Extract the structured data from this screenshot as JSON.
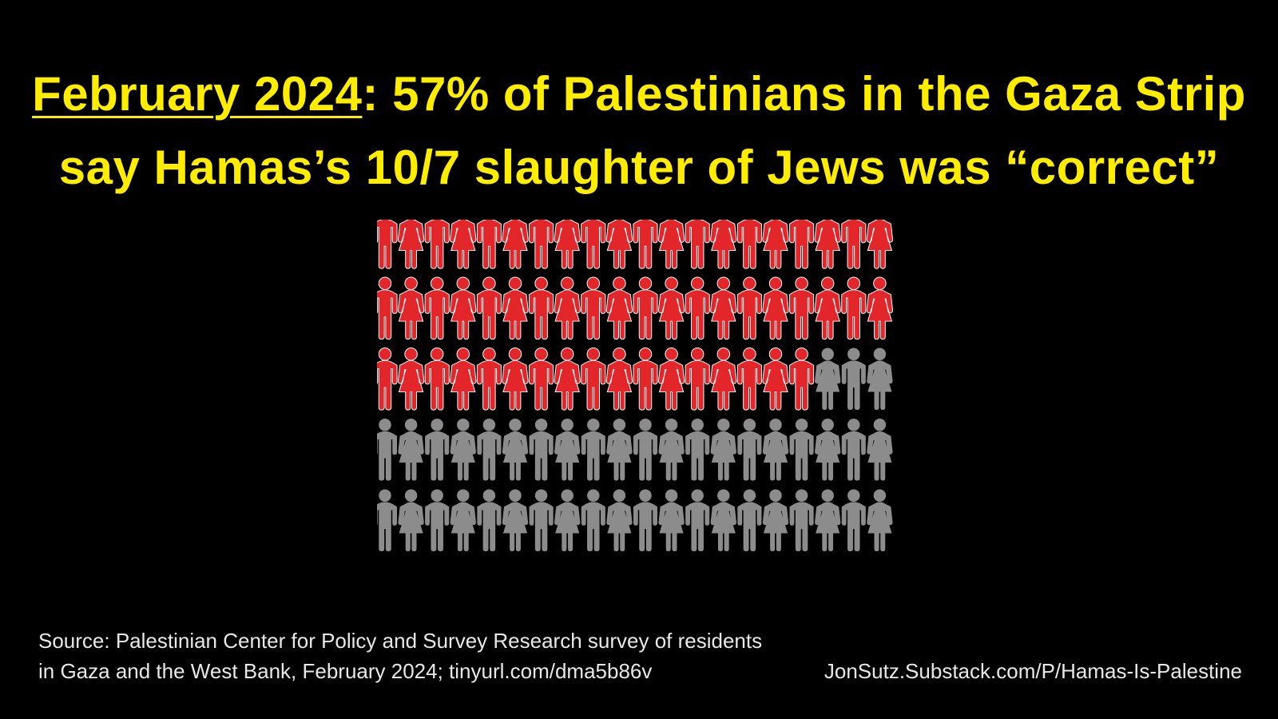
{
  "headline": {
    "date": "February 2024",
    "line1_rest": ": 57% of Palestinians in the Gaza Strip",
    "line2": "say Hamas’s 10/7 slaughter of Jews was “correct”"
  },
  "chart_data": {
    "type": "pictogram",
    "total_icons": 100,
    "rows": 5,
    "columns": 20,
    "values": [
      57,
      43
    ],
    "highlighted_count": 57,
    "icon_pattern": [
      "man",
      "woman"
    ],
    "colors": {
      "highlighted": "#e3262a",
      "rest": "#8c8c8c",
      "outline": "#ffffff"
    }
  },
  "source": {
    "line1": "Source: Palestinian Center for Policy and Survey Research survey of residents",
    "line2": "in Gaza and the West Bank, February 2024; tinyurl.com/dma5b86v"
  },
  "credit": "JonSutz.Substack.com/P/Hamas-Is-Palestine",
  "colors": {
    "background": "#000000",
    "headline": "#ffed00",
    "footer_text": "#e8e8e8"
  }
}
